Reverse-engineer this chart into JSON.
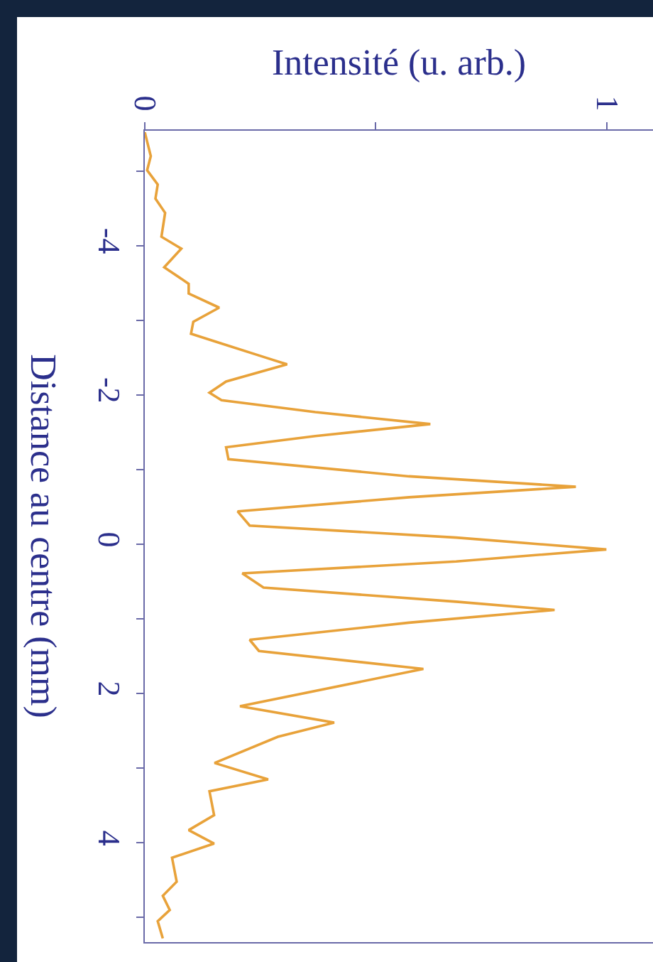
{
  "chart_data": {
    "type": "line",
    "xlabel": "Intensité (u. arb.)",
    "ylabel": "Distance au centre (mm)",
    "xlim": [
      0,
      1.1
    ],
    "xticks": [
      0,
      {
        "value": 0.5,
        "label": null
      },
      1
    ],
    "ylim": [
      5.33,
      -5.54
    ],
    "yticks": [
      {
        "value": -5,
        "label": null
      },
      -4,
      {
        "value": -3,
        "label": null
      },
      -2,
      {
        "value": -1,
        "label": null
      },
      0,
      {
        "value": 1,
        "label": null
      },
      2,
      {
        "value": 3,
        "label": null
      },
      4,
      {
        "value": 5,
        "label": null
      }
    ],
    "grid": false,
    "marker": "none",
    "line_style": "solid",
    "series": [
      {
        "color": "#e8a23a",
        "x": [
          0,
          0.013,
          0.005,
          0.028,
          0.023,
          0.044,
          0.036,
          0.079,
          0.042,
          0.095,
          0.095,
          0.161,
          0.105,
          0.1,
          0.166,
          0.262,
          0.308,
          0.176,
          0.14,
          0.166,
          0.369,
          0.618,
          0.369,
          0.176,
          0.181,
          0.572,
          0.933,
          0.572,
          0.201,
          0.227,
          0.674,
          0.999,
          0.674,
          0.211,
          0.257,
          0.674,
          0.887,
          0.572,
          0.227,
          0.247,
          0.603,
          0.206,
          0.41,
          0.288,
          0.151,
          0.267,
          0.14,
          0.15,
          0.095,
          0.15,
          0.059,
          0.069,
          0.039,
          0.054,
          0.028,
          0.039
        ],
        "values": [
          -5.52,
          -5.2,
          -5.01,
          -4.82,
          -4.63,
          -4.44,
          -4.12,
          -3.96,
          -3.71,
          -3.49,
          -3.36,
          -3.17,
          -2.98,
          -2.82,
          -2.69,
          -2.5,
          -2.41,
          -2.18,
          -2.03,
          -1.93,
          -1.77,
          -1.61,
          -1.45,
          -1.3,
          -1.14,
          -0.91,
          -0.77,
          -0.63,
          -0.44,
          -0.25,
          -0.09,
          0.07,
          0.23,
          0.39,
          0.58,
          0.77,
          0.88,
          1.05,
          1.28,
          1.43,
          1.67,
          2.17,
          2.39,
          2.58,
          2.93,
          3.15,
          3.31,
          3.63,
          3.83,
          4.01,
          4.2,
          4.52,
          4.71,
          4.9,
          5.05,
          5.28
        ]
      }
    ]
  }
}
